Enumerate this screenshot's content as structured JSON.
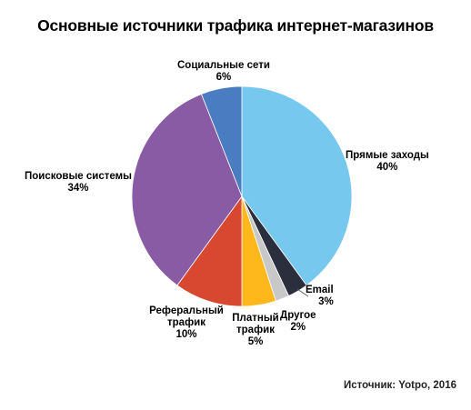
{
  "chart_data": {
    "type": "pie",
    "title": "Основные источники трафика интернет-магазинов",
    "slices": [
      {
        "label": "Прямые заходы",
        "value": 40,
        "value_label": "40%",
        "color": "#76C8EE"
      },
      {
        "label": "Email",
        "value": 3,
        "value_label": "3%",
        "color": "#2B2F3D"
      },
      {
        "label": "Другое",
        "value": 2,
        "value_label": "2%",
        "color": "#C8C8C8"
      },
      {
        "label": "Платный трафик",
        "value": 5,
        "value_label": "5%",
        "color": "#FFB81C"
      },
      {
        "label": "Реферальный трафик",
        "value": 10,
        "value_label": "10%",
        "color": "#D8472F"
      },
      {
        "label": "Поисковые системы",
        "value": 34,
        "value_label": "34%",
        "color": "#8A5BA5"
      },
      {
        "label": "Социальные сети",
        "value": 6,
        "value_label": "6%",
        "color": "#4A7CC2"
      }
    ],
    "start_angle": "12 o'clock",
    "direction": "clockwise"
  },
  "source": "Источник: Yotpo, 2016"
}
